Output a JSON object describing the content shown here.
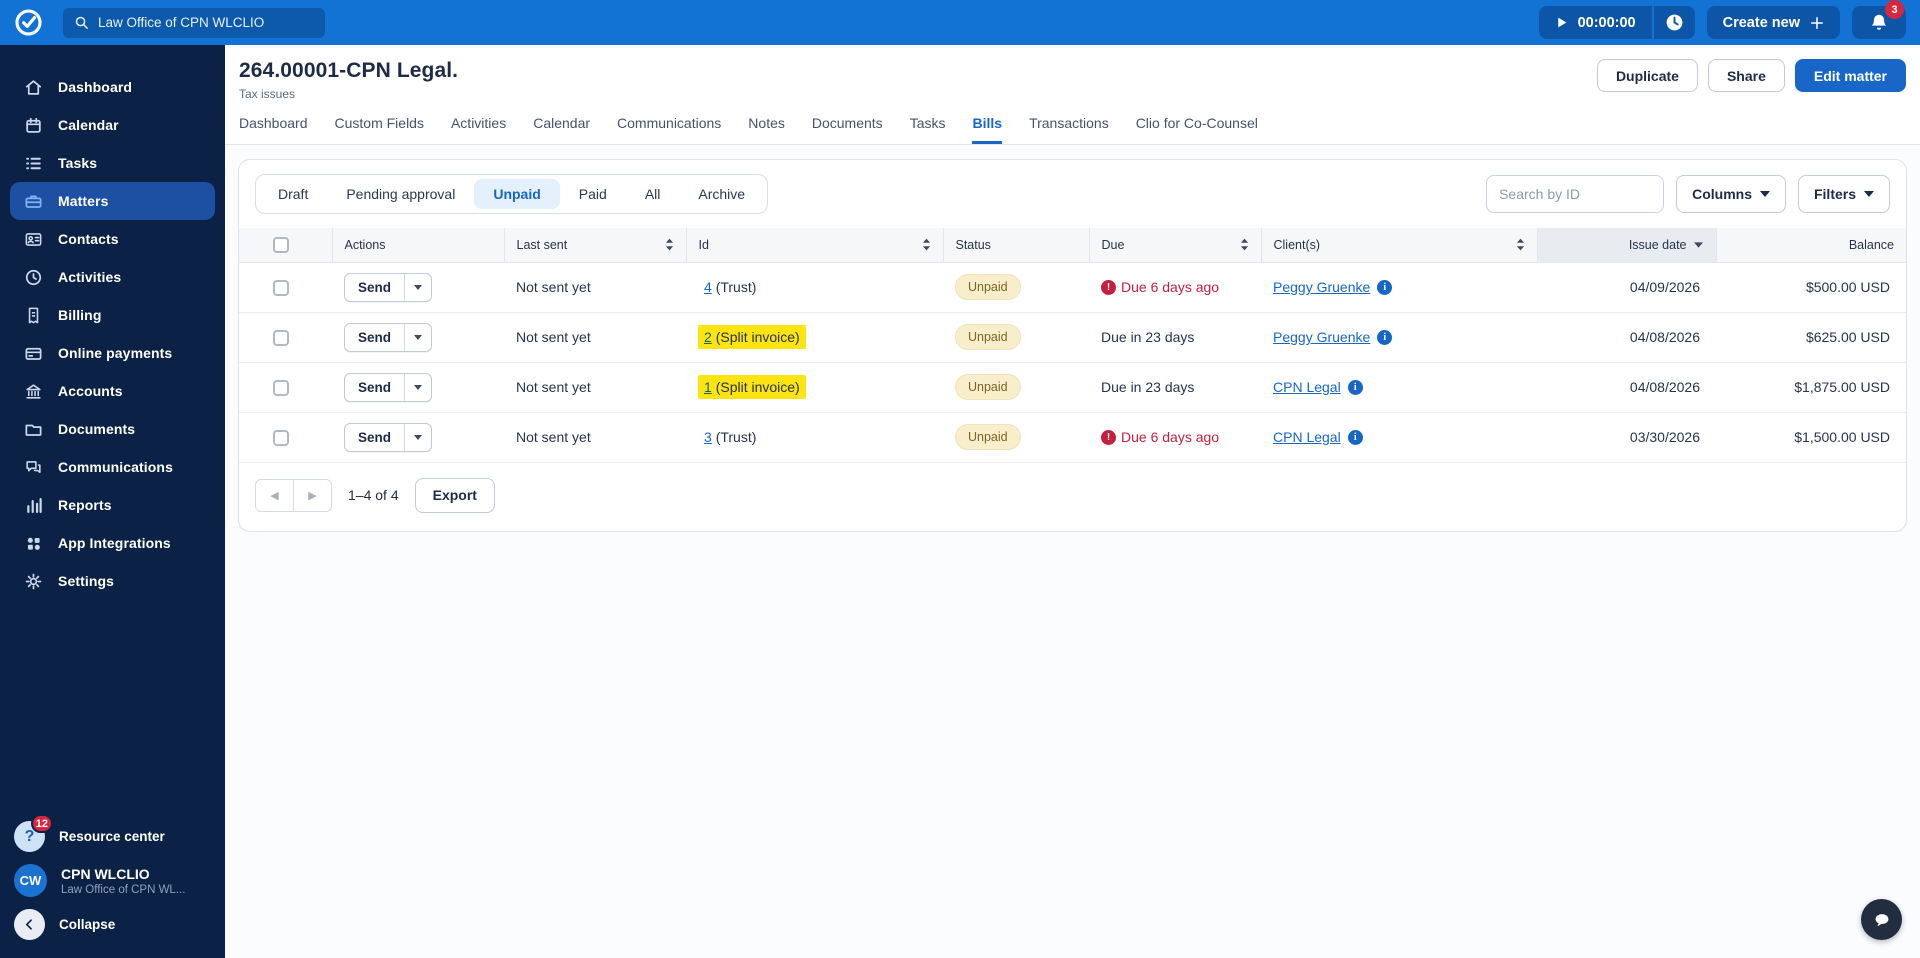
{
  "topbar": {
    "search_value": "Law Office of CPN WLCLIO",
    "timer_value": "00:00:00",
    "create_label": "Create new",
    "notification_count": "3"
  },
  "sidebar": {
    "items": [
      {
        "label": "Dashboard",
        "icon": "home",
        "active": false
      },
      {
        "label": "Calendar",
        "icon": "calendar",
        "active": false
      },
      {
        "label": "Tasks",
        "icon": "tasks",
        "active": false
      },
      {
        "label": "Matters",
        "icon": "briefcase",
        "active": true
      },
      {
        "label": "Contacts",
        "icon": "contact-card",
        "active": false
      },
      {
        "label": "Activities",
        "icon": "clock",
        "active": false
      },
      {
        "label": "Billing",
        "icon": "receipt",
        "active": false
      },
      {
        "label": "Online payments",
        "icon": "credit-card",
        "active": false
      },
      {
        "label": "Accounts",
        "icon": "bank",
        "active": false
      },
      {
        "label": "Documents",
        "icon": "folder",
        "active": false
      },
      {
        "label": "Communications",
        "icon": "chat",
        "active": false
      },
      {
        "label": "Reports",
        "icon": "bar-chart",
        "active": false
      },
      {
        "label": "App Integrations",
        "icon": "apps",
        "active": false
      },
      {
        "label": "Settings",
        "icon": "gear",
        "active": false
      }
    ],
    "resource_center": {
      "label": "Resource center",
      "badge": "12",
      "icon_glyph": "?"
    },
    "user": {
      "initials": "CW",
      "name": "CPN WLCLIO",
      "org": "Law Office of CPN WL..."
    },
    "collapse": {
      "label": "Collapse"
    }
  },
  "matter": {
    "title": "264.00001-CPN Legal.",
    "subtitle": "Tax issues",
    "actions": {
      "duplicate": "Duplicate",
      "share": "Share",
      "edit": "Edit matter"
    }
  },
  "tabs": [
    {
      "label": "Dashboard",
      "active": false
    },
    {
      "label": "Custom Fields",
      "active": false
    },
    {
      "label": "Activities",
      "active": false
    },
    {
      "label": "Calendar",
      "active": false
    },
    {
      "label": "Communications",
      "active": false
    },
    {
      "label": "Notes",
      "active": false
    },
    {
      "label": "Documents",
      "active": false
    },
    {
      "label": "Tasks",
      "active": false
    },
    {
      "label": "Bills",
      "active": true
    },
    {
      "label": "Transactions",
      "active": false
    },
    {
      "label": "Clio for Co-Counsel",
      "active": false
    }
  ],
  "bills": {
    "filter_tabs": [
      {
        "label": "Draft",
        "active": false
      },
      {
        "label": "Pending approval",
        "active": false
      },
      {
        "label": "Unpaid",
        "active": true
      },
      {
        "label": "Paid",
        "active": false
      },
      {
        "label": "All",
        "active": false
      },
      {
        "label": "Archive",
        "active": false
      }
    ],
    "search_placeholder": "Search by ID",
    "columns_label": "Columns",
    "filters_label": "Filters",
    "table": {
      "headers": [
        {
          "label": "Actions",
          "sort": "none",
          "align": "left",
          "sorted": false
        },
        {
          "label": "Last sent",
          "sort": "both",
          "align": "left",
          "sorted": false
        },
        {
          "label": "Id",
          "sort": "both",
          "align": "left",
          "sorted": false
        },
        {
          "label": "Status",
          "sort": "none",
          "align": "left",
          "sorted": false
        },
        {
          "label": "Due",
          "sort": "both",
          "align": "left",
          "sorted": false
        },
        {
          "label": "Client(s)",
          "sort": "both",
          "align": "left",
          "sorted": false
        },
        {
          "label": "Issue date",
          "sort": "desc",
          "align": "right",
          "sorted": true
        },
        {
          "label": "Balance",
          "sort": "none",
          "align": "right",
          "sorted": false
        }
      ],
      "rows": [
        {
          "action": "Send",
          "last_sent": "Not sent yet",
          "id": "4",
          "id_note": "(Trust)",
          "highlighted": false,
          "status": "Unpaid",
          "due": "Due 6 days ago",
          "overdue": true,
          "client": "Peggy Gruenke",
          "issue_date": "04/09/2026",
          "balance": "$500.00 USD"
        },
        {
          "action": "Send",
          "last_sent": "Not sent yet",
          "id": "2",
          "id_note": "(Split invoice)",
          "highlighted": true,
          "status": "Unpaid",
          "due": "Due in 23 days",
          "overdue": false,
          "client": "Peggy Gruenke",
          "issue_date": "04/08/2026",
          "balance": "$625.00 USD"
        },
        {
          "action": "Send",
          "last_sent": "Not sent yet",
          "id": "1",
          "id_note": "(Split invoice)",
          "highlighted": true,
          "status": "Unpaid",
          "due": "Due in 23 days",
          "overdue": false,
          "client": "CPN Legal",
          "issue_date": "04/08/2026",
          "balance": "$1,875.00 USD"
        },
        {
          "action": "Send",
          "last_sent": "Not sent yet",
          "id": "3",
          "id_note": "(Trust)",
          "highlighted": false,
          "status": "Unpaid",
          "due": "Due 6 days ago",
          "overdue": true,
          "client": "CPN Legal",
          "issue_date": "03/30/2026",
          "balance": "$1,500.00 USD"
        }
      ]
    },
    "pagination": {
      "range": "1–4 of 4",
      "export_label": "Export"
    }
  },
  "colors": {
    "topbar_blue": "#1273d4",
    "sidebar_navy": "#0c2146",
    "accent_blue": "#1766c8",
    "overdue_red": "#c41f3e",
    "highlight_yellow": "#fbe411",
    "unpaid_badge_bg": "#f8eecb",
    "notification_red": "#d7263d"
  }
}
